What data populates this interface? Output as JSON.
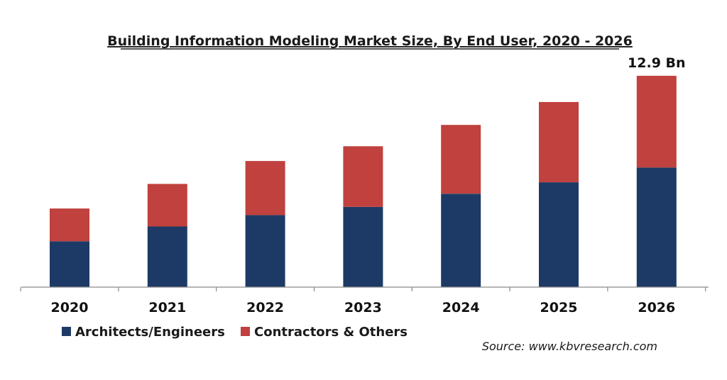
{
  "chart_data": {
    "type": "bar",
    "stacked": true,
    "title": "Building Information Modeling Market Size, By End User, 2020 - 2026",
    "categories": [
      "2020",
      "2021",
      "2022",
      "2023",
      "2024",
      "2025",
      "2026"
    ],
    "series": [
      {
        "name": "Architects/Engineers",
        "color": "#1d3a66",
        "values": [
          2.8,
          3.7,
          4.4,
          4.9,
          5.7,
          6.4,
          7.3
        ]
      },
      {
        "name": "Contractors & Others",
        "color": "#c0413e",
        "values": [
          2.0,
          2.6,
          3.3,
          3.7,
          4.2,
          4.9,
          5.6
        ]
      }
    ],
    "ylim": [
      0,
      13.2
    ],
    "grid": false,
    "legend_position": "bottom-left",
    "annotations": [
      {
        "category": "2026",
        "text": "12.9 Bn"
      }
    ],
    "source": "Source: www.kbvresearch.com"
  }
}
